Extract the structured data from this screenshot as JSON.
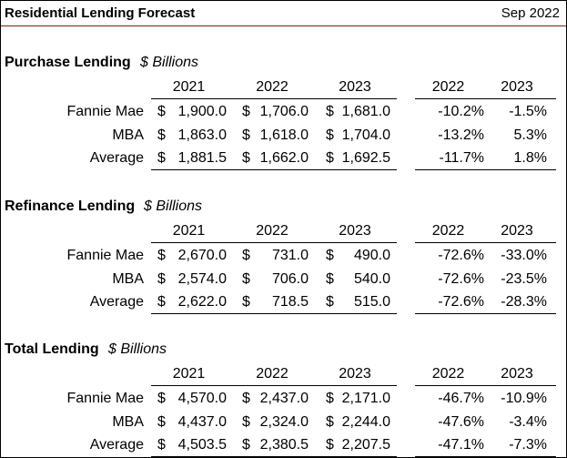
{
  "header": {
    "title": "Residential Lending Forecast",
    "date": "Sep 2022"
  },
  "sections": [
    {
      "title": "Purchase Lending",
      "unit": "$ Billions",
      "value_years": [
        "2021",
        "2022",
        "2023"
      ],
      "change_years": [
        "2022",
        "2023"
      ],
      "rows": [
        {
          "label": "Fannie Mae",
          "values": [
            {
              "symbol": "$",
              "amount": "1,900.0"
            },
            {
              "symbol": "$",
              "amount": "1,706.0"
            },
            {
              "symbol": "$",
              "amount": "1,681.0"
            }
          ],
          "changes": [
            "-10.2%",
            "-1.5%"
          ]
        },
        {
          "label": "MBA",
          "values": [
            {
              "symbol": "$",
              "amount": "1,863.0"
            },
            {
              "symbol": "$",
              "amount": "1,618.0"
            },
            {
              "symbol": "$",
              "amount": "1,704.0"
            }
          ],
          "changes": [
            "-13.2%",
            "5.3%"
          ]
        },
        {
          "label": "Average",
          "values": [
            {
              "symbol": "$",
              "amount": "1,881.5"
            },
            {
              "symbol": "$",
              "amount": "1,662.0"
            },
            {
              "symbol": "$",
              "amount": "1,692.5"
            }
          ],
          "changes": [
            "-11.7%",
            "1.8%"
          ]
        }
      ]
    },
    {
      "title": "Refinance Lending",
      "unit": "$ Billions",
      "value_years": [
        "2021",
        "2022",
        "2023"
      ],
      "change_years": [
        "2022",
        "2023"
      ],
      "rows": [
        {
          "label": "Fannie Mae",
          "values": [
            {
              "symbol": "$",
              "amount": "2,670.0"
            },
            {
              "symbol": "$",
              "amount": "731.0"
            },
            {
              "symbol": "$",
              "amount": "490.0"
            }
          ],
          "changes": [
            "-72.6%",
            "-33.0%"
          ]
        },
        {
          "label": "MBA",
          "values": [
            {
              "symbol": "$",
              "amount": "2,574.0"
            },
            {
              "symbol": "$",
              "amount": "706.0"
            },
            {
              "symbol": "$",
              "amount": "540.0"
            }
          ],
          "changes": [
            "-72.6%",
            "-23.5%"
          ]
        },
        {
          "label": "Average",
          "values": [
            {
              "symbol": "$",
              "amount": "2,622.0"
            },
            {
              "symbol": "$",
              "amount": "718.5"
            },
            {
              "symbol": "$",
              "amount": "515.0"
            }
          ],
          "changes": [
            "-72.6%",
            "-28.3%"
          ]
        }
      ]
    },
    {
      "title": "Total Lending",
      "unit": "$ Billions",
      "value_years": [
        "2021",
        "2022",
        "2023"
      ],
      "change_years": [
        "2022",
        "2023"
      ],
      "rows": [
        {
          "label": "Fannie Mae",
          "values": [
            {
              "symbol": "$",
              "amount": "4,570.0"
            },
            {
              "symbol": "$",
              "amount": "2,437.0"
            },
            {
              "symbol": "$",
              "amount": "2,171.0"
            }
          ],
          "changes": [
            "-46.7%",
            "-10.9%"
          ]
        },
        {
          "label": "MBA",
          "values": [
            {
              "symbol": "$",
              "amount": "4,437.0"
            },
            {
              "symbol": "$",
              "amount": "2,324.0"
            },
            {
              "symbol": "$",
              "amount": "2,244.0"
            }
          ],
          "changes": [
            "-47.6%",
            "-3.4%"
          ]
        },
        {
          "label": "Average",
          "values": [
            {
              "symbol": "$",
              "amount": "4,503.5"
            },
            {
              "symbol": "$",
              "amount": "2,380.5"
            },
            {
              "symbol": "$",
              "amount": "2,207.5"
            }
          ],
          "changes": [
            "-47.1%",
            "-7.3%"
          ]
        }
      ]
    }
  ]
}
